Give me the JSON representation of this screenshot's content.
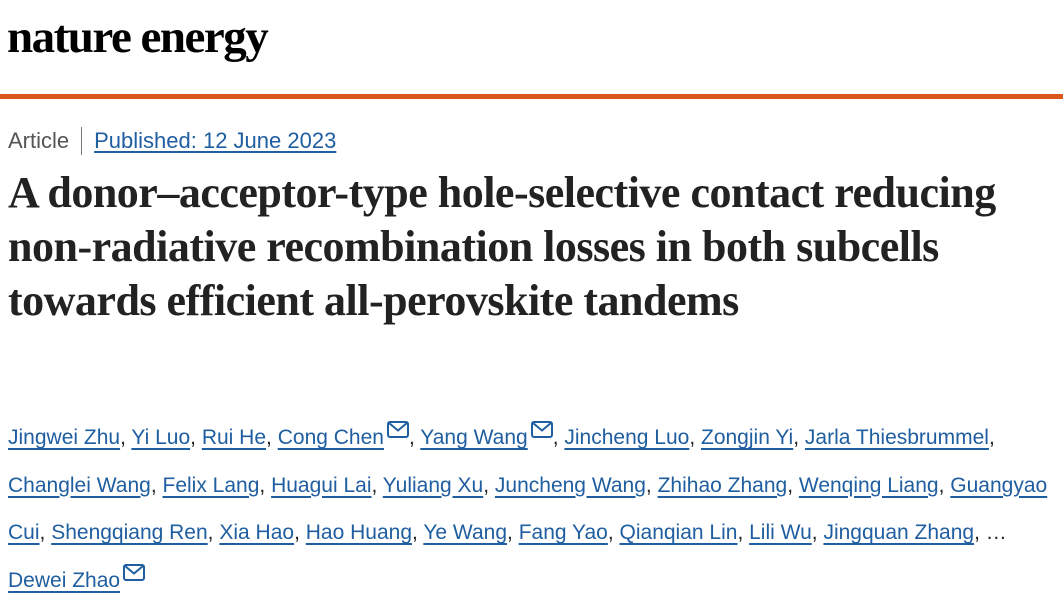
{
  "header": {
    "logo": "nature energy"
  },
  "article": {
    "type": "Article",
    "published": "Published: 12 June 2023",
    "title": "A donor–acceptor-type hole-selective contact reducing non-radiative recombination losses in both subcells towards efficient all-perovskite tandems",
    "authors": {
      "separator": ",",
      "ellipsis": "…",
      "list": [
        {
          "name": "Jingwei Zhu",
          "email": false
        },
        {
          "name": "Yi Luo",
          "email": false
        },
        {
          "name": "Rui He",
          "email": false
        },
        {
          "name": "Cong Chen",
          "email": true
        },
        {
          "name": "Yang Wang",
          "email": true
        },
        {
          "name": "Jincheng Luo",
          "email": false
        },
        {
          "name": "Zongjin Yi",
          "email": false
        },
        {
          "name": "Jarla Thiesbrummel",
          "email": false
        },
        {
          "name": "Changlei Wang",
          "email": false
        },
        {
          "name": "Felix Lang",
          "email": false
        },
        {
          "name": "Huagui Lai",
          "email": false
        },
        {
          "name": "Yuliang Xu",
          "email": false
        },
        {
          "name": "Juncheng Wang",
          "email": false
        },
        {
          "name": "Zhihao Zhang",
          "email": false
        },
        {
          "name": "Wenqing Liang",
          "email": false
        },
        {
          "name": "Guangyao Cui",
          "email": false
        },
        {
          "name": "Shengqiang Ren",
          "email": false
        },
        {
          "name": "Xia Hao",
          "email": false
        },
        {
          "name": "Hao Huang",
          "email": false
        },
        {
          "name": "Ye Wang",
          "email": false
        },
        {
          "name": "Fang Yao",
          "email": false
        },
        {
          "name": "Qianqian Lin",
          "email": false
        },
        {
          "name": "Lili Wu",
          "email": false
        },
        {
          "name": "Jingquan Zhang",
          "email": false
        },
        {
          "name": "Dewei Zhao",
          "email": true
        }
      ]
    }
  }
}
